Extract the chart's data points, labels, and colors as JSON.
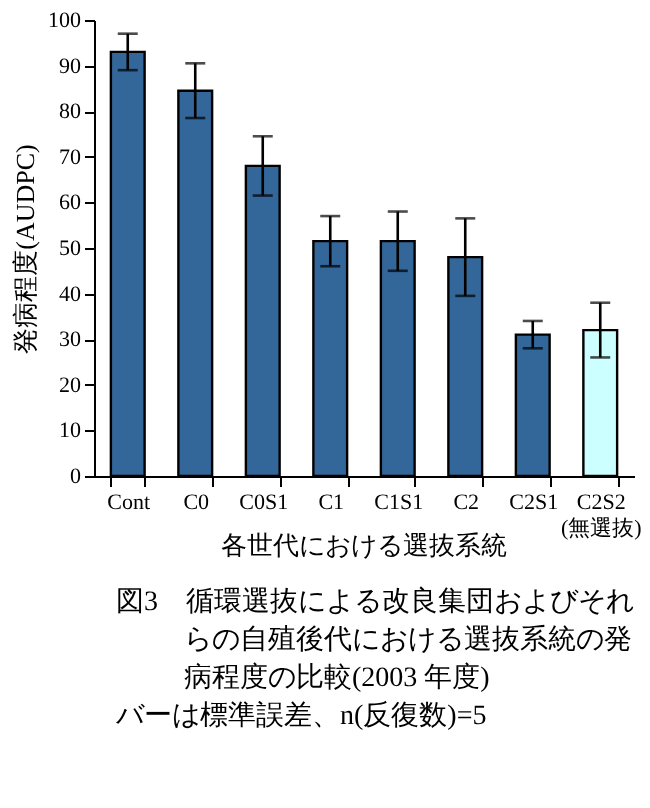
{
  "chart_data": {
    "type": "bar",
    "xlabel": "各世代における選抜系統",
    "ylabel": "発病程度(AUDPC)",
    "categories": [
      "Cont",
      "C0",
      "C0S1",
      "C1",
      "C1S1",
      "C2",
      "C2S1",
      "C2S2\n(無選抜)"
    ],
    "values": [
      93,
      84.5,
      68,
      51.5,
      51.5,
      48,
      31,
      32
    ],
    "colors": [
      "#336699",
      "#336699",
      "#336699",
      "#336699",
      "#336699",
      "#336699",
      "#336699",
      "#ccffff"
    ],
    "errors": [
      4,
      6,
      6.5,
      5.5,
      6.5,
      8.5,
      3,
      6
    ],
    "ylim": [
      0,
      100
    ],
    "yticks": [
      0,
      10,
      20,
      30,
      40,
      50,
      60,
      70,
      80,
      90,
      100
    ],
    "grid": false,
    "annotations": [
      "図3　循環選抜による改良集団およびそれらの自殖後代における選抜系統の発病程度の比較(2003 年度)",
      "バーは標準誤差、n(反復数)=5"
    ]
  }
}
